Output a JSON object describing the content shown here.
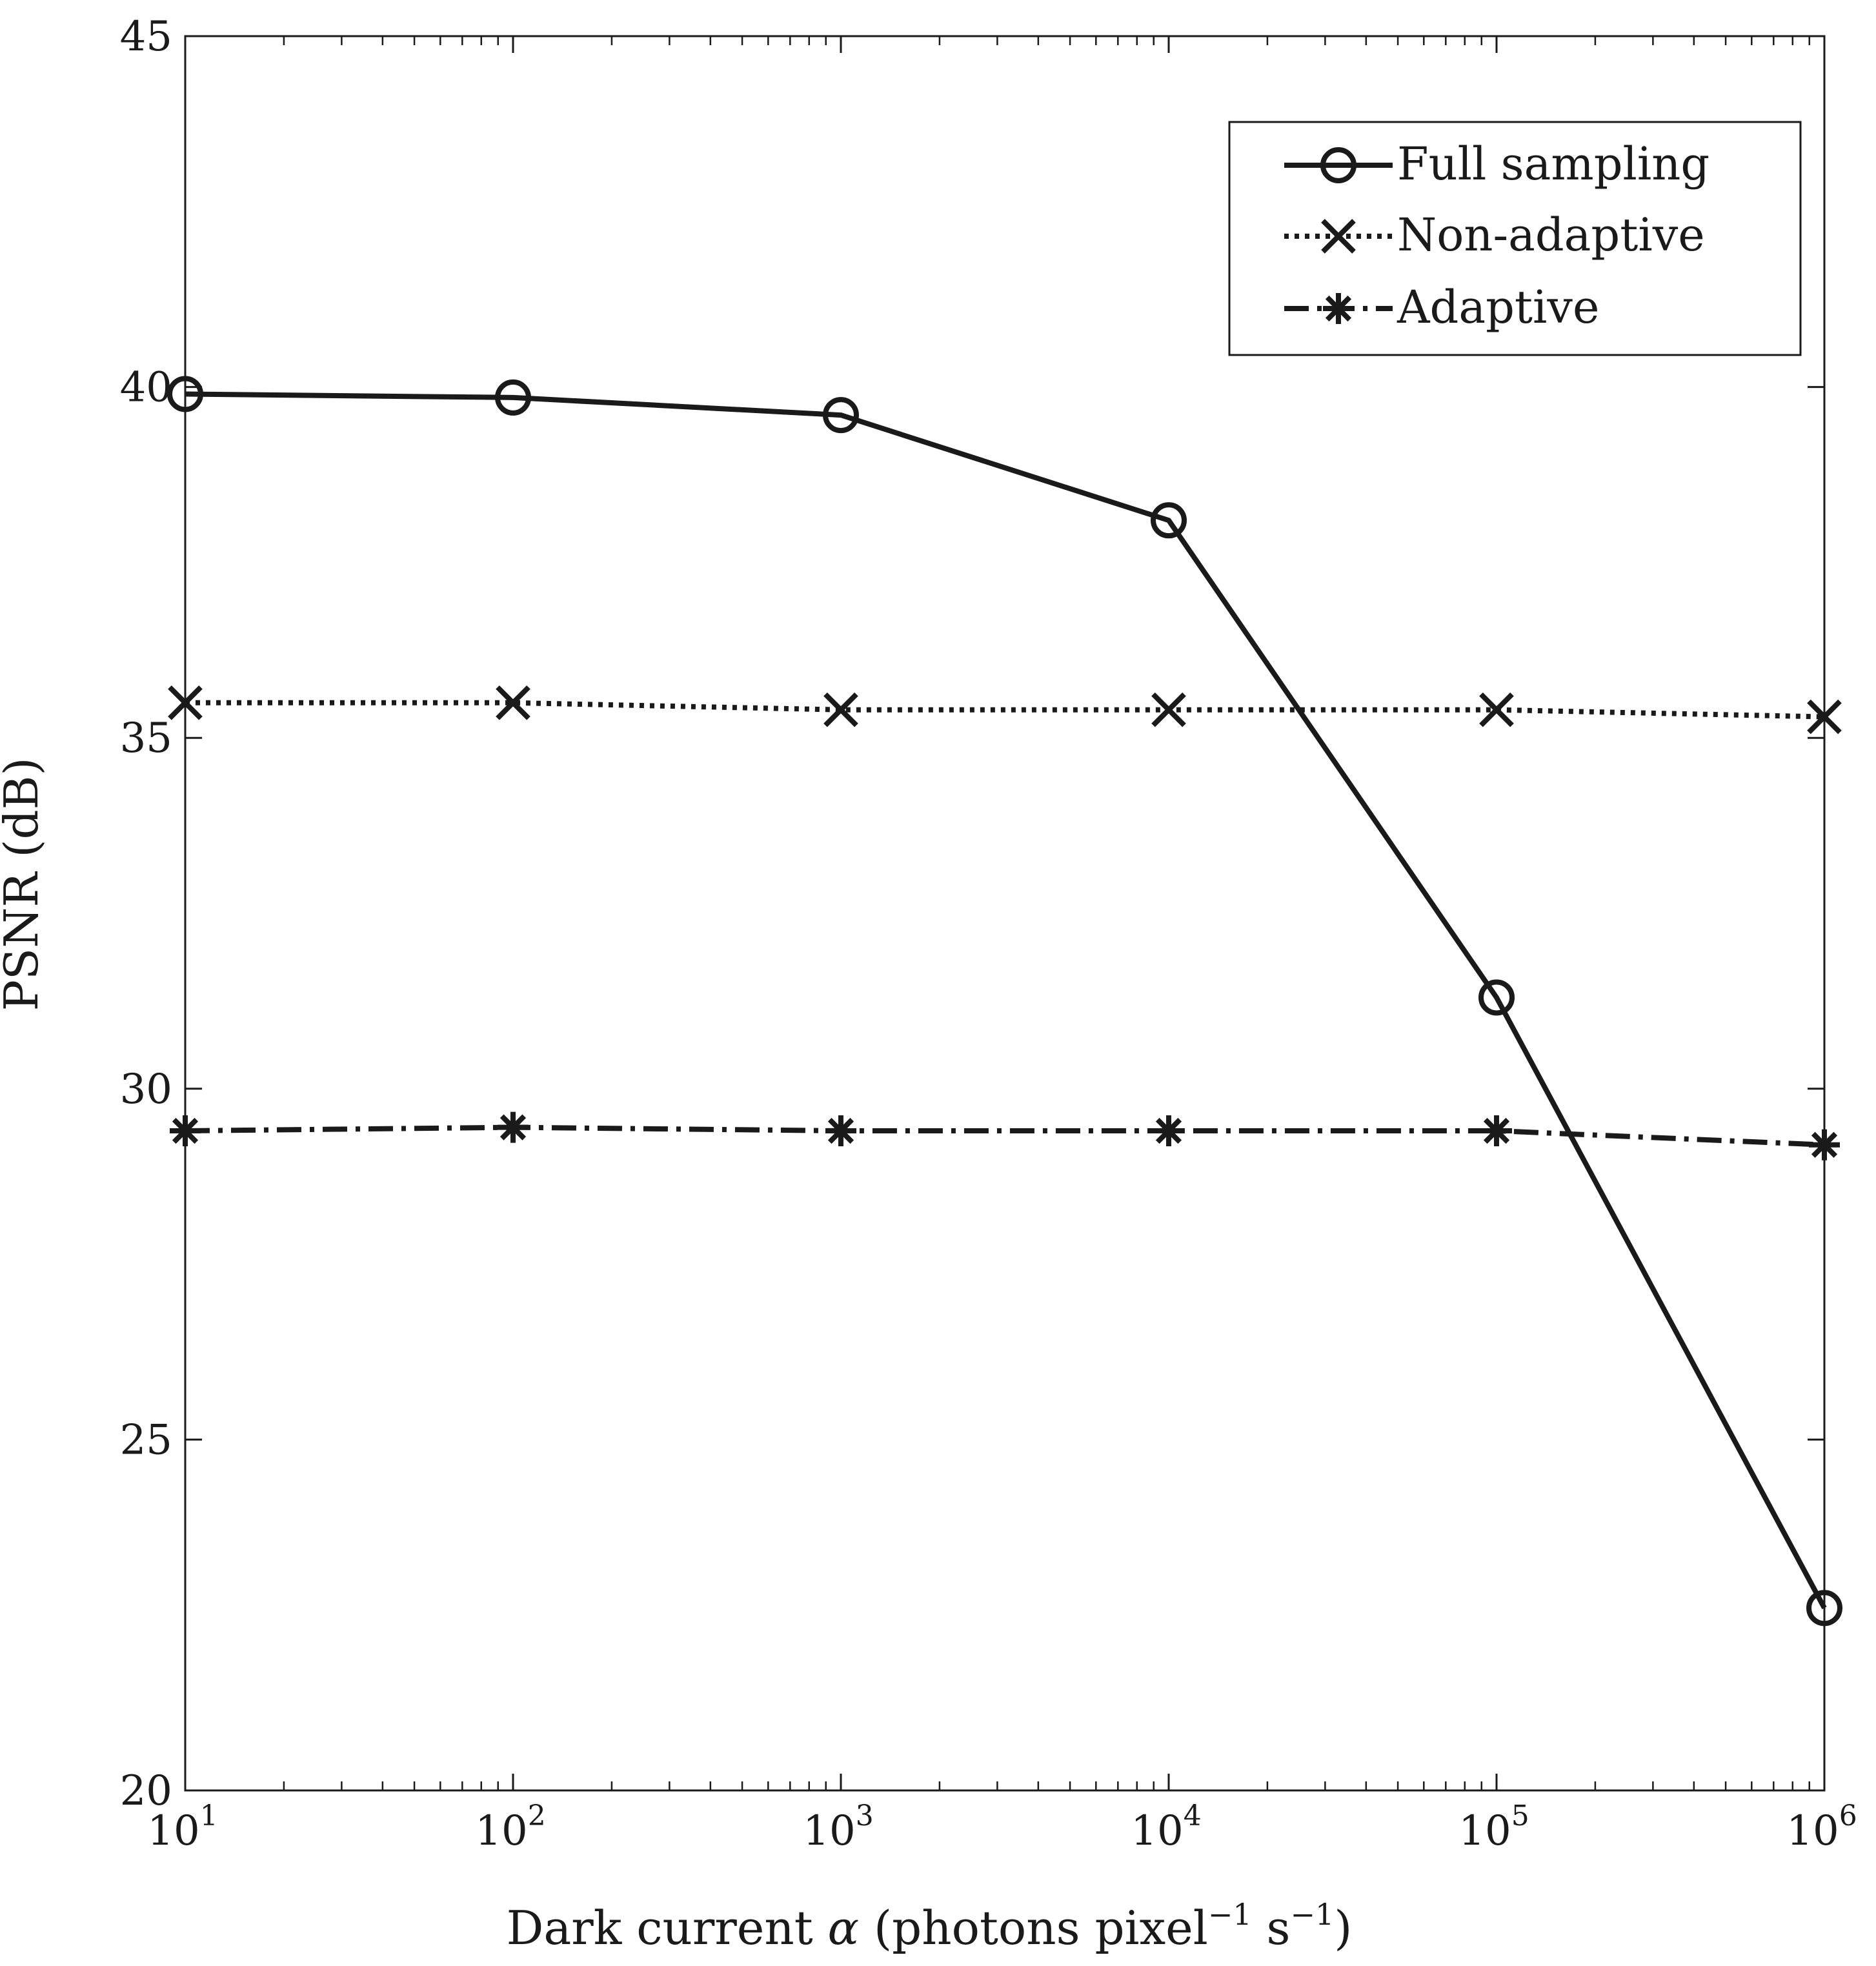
{
  "chart_data": {
    "type": "line",
    "title": "",
    "xlabel": {
      "main": "Dark current ",
      "symbol": "α",
      "rest": " (photons pixel",
      "sup1": "−1",
      "mid": " s",
      "sup2": "−1",
      "end": ")"
    },
    "ylabel": "PSNR (dB)",
    "xscale": "log",
    "xlim": [
      10,
      1000000
    ],
    "ylim": [
      20,
      45
    ],
    "grid": false,
    "legend_position": "top-right",
    "x": [
      10,
      100,
      1000,
      10000,
      100000,
      1000000
    ],
    "x_tick_labels": [
      {
        "base": "10",
        "exp": "1"
      },
      {
        "base": "10",
        "exp": "2"
      },
      {
        "base": "10",
        "exp": "3"
      },
      {
        "base": "10",
        "exp": "4"
      },
      {
        "base": "10",
        "exp": "5"
      },
      {
        "base": "10",
        "exp": "6"
      }
    ],
    "y_ticks": [
      20,
      25,
      30,
      35,
      40,
      45
    ],
    "y_tick_labels": [
      "20",
      "25",
      "30",
      "35",
      "40",
      "45"
    ],
    "series": [
      {
        "name": "Full sampling",
        "values": [
          39.9,
          39.85,
          39.6,
          38.1,
          31.3,
          22.6
        ],
        "line_style": "solid",
        "marker": "circle"
      },
      {
        "name": "Non-adaptive",
        "values": [
          35.5,
          35.5,
          35.4,
          35.4,
          35.4,
          35.3
        ],
        "line_style": "dotted",
        "marker": "x"
      },
      {
        "name": "Adaptive",
        "values": [
          29.4,
          29.45,
          29.4,
          29.4,
          29.4,
          29.2
        ],
        "line_style": "dashdot",
        "marker": "asterisk"
      }
    ],
    "colors": {
      "line": "#1a1a1a",
      "background": "#ffffff"
    }
  }
}
